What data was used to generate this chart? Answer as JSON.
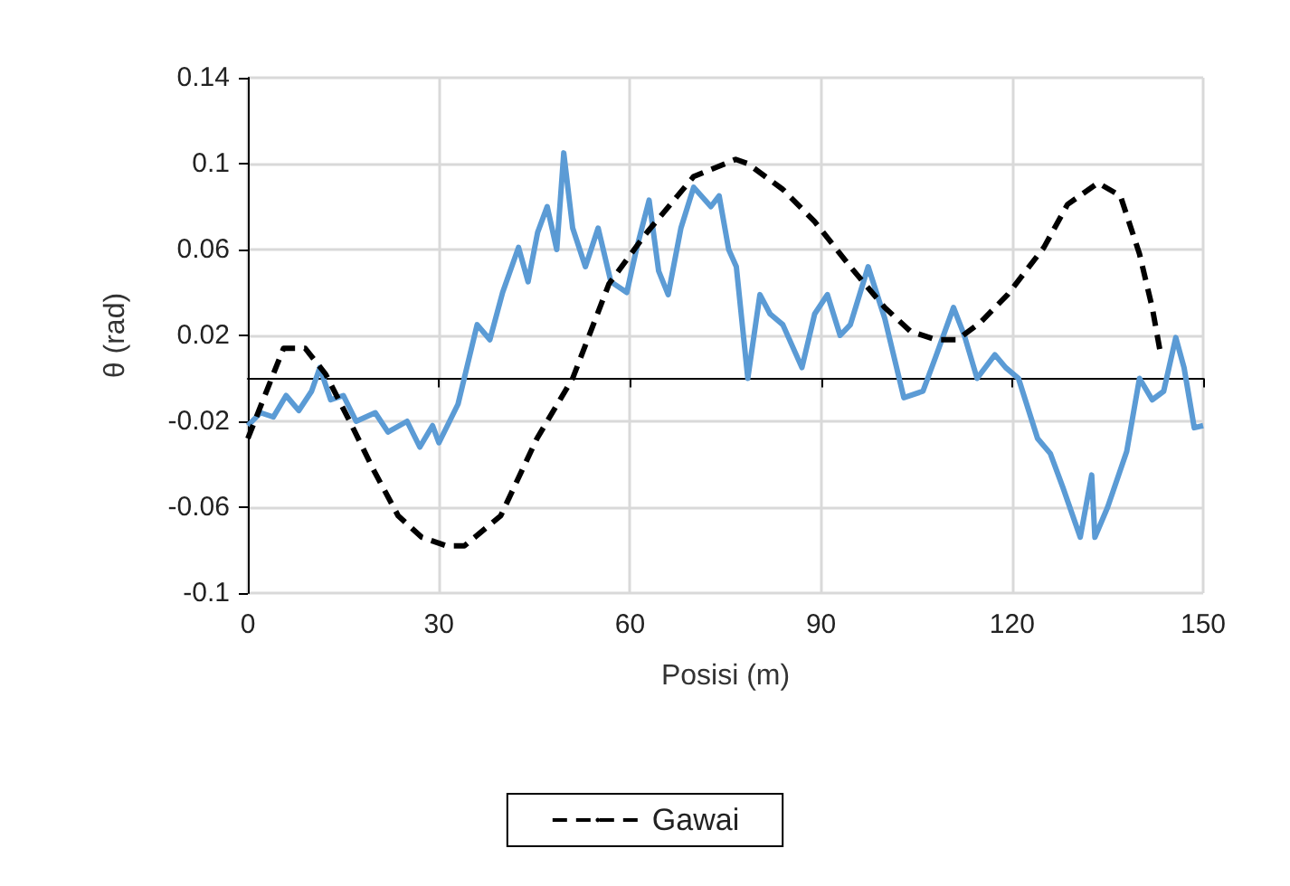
{
  "chart_data": {
    "type": "line",
    "xlabel": "Posisi (m)",
    "ylabel": "θ (rad)",
    "xlim": [
      0,
      150
    ],
    "xticks": [
      0,
      30,
      60,
      90,
      120,
      150
    ],
    "ylim": [
      -0.1,
      0.14
    ],
    "yticks": [
      -0.1,
      -0.06,
      -0.02,
      0.02,
      0.06,
      0.1,
      0.14
    ],
    "grid": true,
    "legend": "bottom",
    "marker": "none",
    "series": [
      {
        "color": "#5b9bd5",
        "line_style": "solid",
        "x": [
          0,
          2,
          4,
          6,
          8,
          10,
          11.3,
          13,
          15,
          17,
          20,
          22,
          25,
          27,
          29,
          30,
          33,
          36,
          38,
          40,
          42.5,
          44,
          45.5,
          47,
          48.5,
          49.6,
          51,
          53,
          55,
          57,
          59.5,
          61,
          63,
          64.5,
          66,
          68,
          70,
          72.7,
          74,
          75.5,
          76.7,
          78.5,
          80.4,
          82,
          84,
          87,
          89,
          91,
          93,
          94.6,
          97.4,
          100,
          103,
          106,
          108,
          110.8,
          112.5,
          114.5,
          117.3,
          119,
          121,
          124,
          126,
          128,
          130.7,
          132.5,
          133,
          135,
          138,
          140,
          142,
          143.8,
          145.7,
          147,
          148.6,
          150
        ],
        "values": [
          -0.022,
          -0.016,
          -0.018,
          -0.008,
          -0.015,
          -0.006,
          0.005,
          -0.01,
          -0.008,
          -0.02,
          -0.016,
          -0.025,
          -0.02,
          -0.032,
          -0.022,
          -0.03,
          -0.012,
          0.025,
          0.018,
          0.04,
          0.061,
          0.045,
          0.068,
          0.08,
          0.06,
          0.105,
          0.07,
          0.052,
          0.07,
          0.045,
          0.04,
          0.06,
          0.083,
          0.05,
          0.039,
          0.07,
          0.089,
          0.08,
          0.085,
          0.06,
          0.052,
          0.0,
          0.039,
          0.03,
          0.025,
          0.005,
          0.03,
          0.039,
          0.02,
          0.025,
          0.052,
          0.028,
          -0.009,
          -0.006,
          0.01,
          0.033,
          0.02,
          0.0,
          0.011,
          0.005,
          0.0,
          -0.028,
          -0.035,
          -0.051,
          -0.074,
          -0.045,
          -0.074,
          -0.06,
          -0.034,
          0.0,
          -0.01,
          -0.006,
          0.019,
          0.005,
          -0.023,
          -0.022
        ]
      },
      {
        "name": "Gawai",
        "color": "#000000",
        "line_style": "dashed",
        "x": [
          0,
          5.6,
          9,
          12.2,
          16,
          19.8,
          23.6,
          27.3,
          31.2,
          34,
          39.7,
          45.4,
          51,
          56.7,
          62.4,
          70,
          76.6,
          78.5,
          84,
          89,
          94.6,
          100,
          104,
          108,
          111.4,
          115,
          119.3,
          125,
          128.7,
          133.5,
          137,
          140,
          142,
          143.4
        ],
        "values": [
          -0.028,
          0.014,
          0.014,
          0.002,
          -0.02,
          -0.043,
          -0.064,
          -0.074,
          -0.078,
          -0.078,
          -0.064,
          -0.028,
          0.0,
          0.044,
          0.067,
          0.094,
          0.102,
          0.1,
          0.088,
          0.073,
          0.052,
          0.033,
          0.022,
          0.018,
          0.018,
          0.026,
          0.039,
          0.061,
          0.081,
          0.091,
          0.085,
          0.058,
          0.033,
          0.01
        ]
      }
    ]
  }
}
